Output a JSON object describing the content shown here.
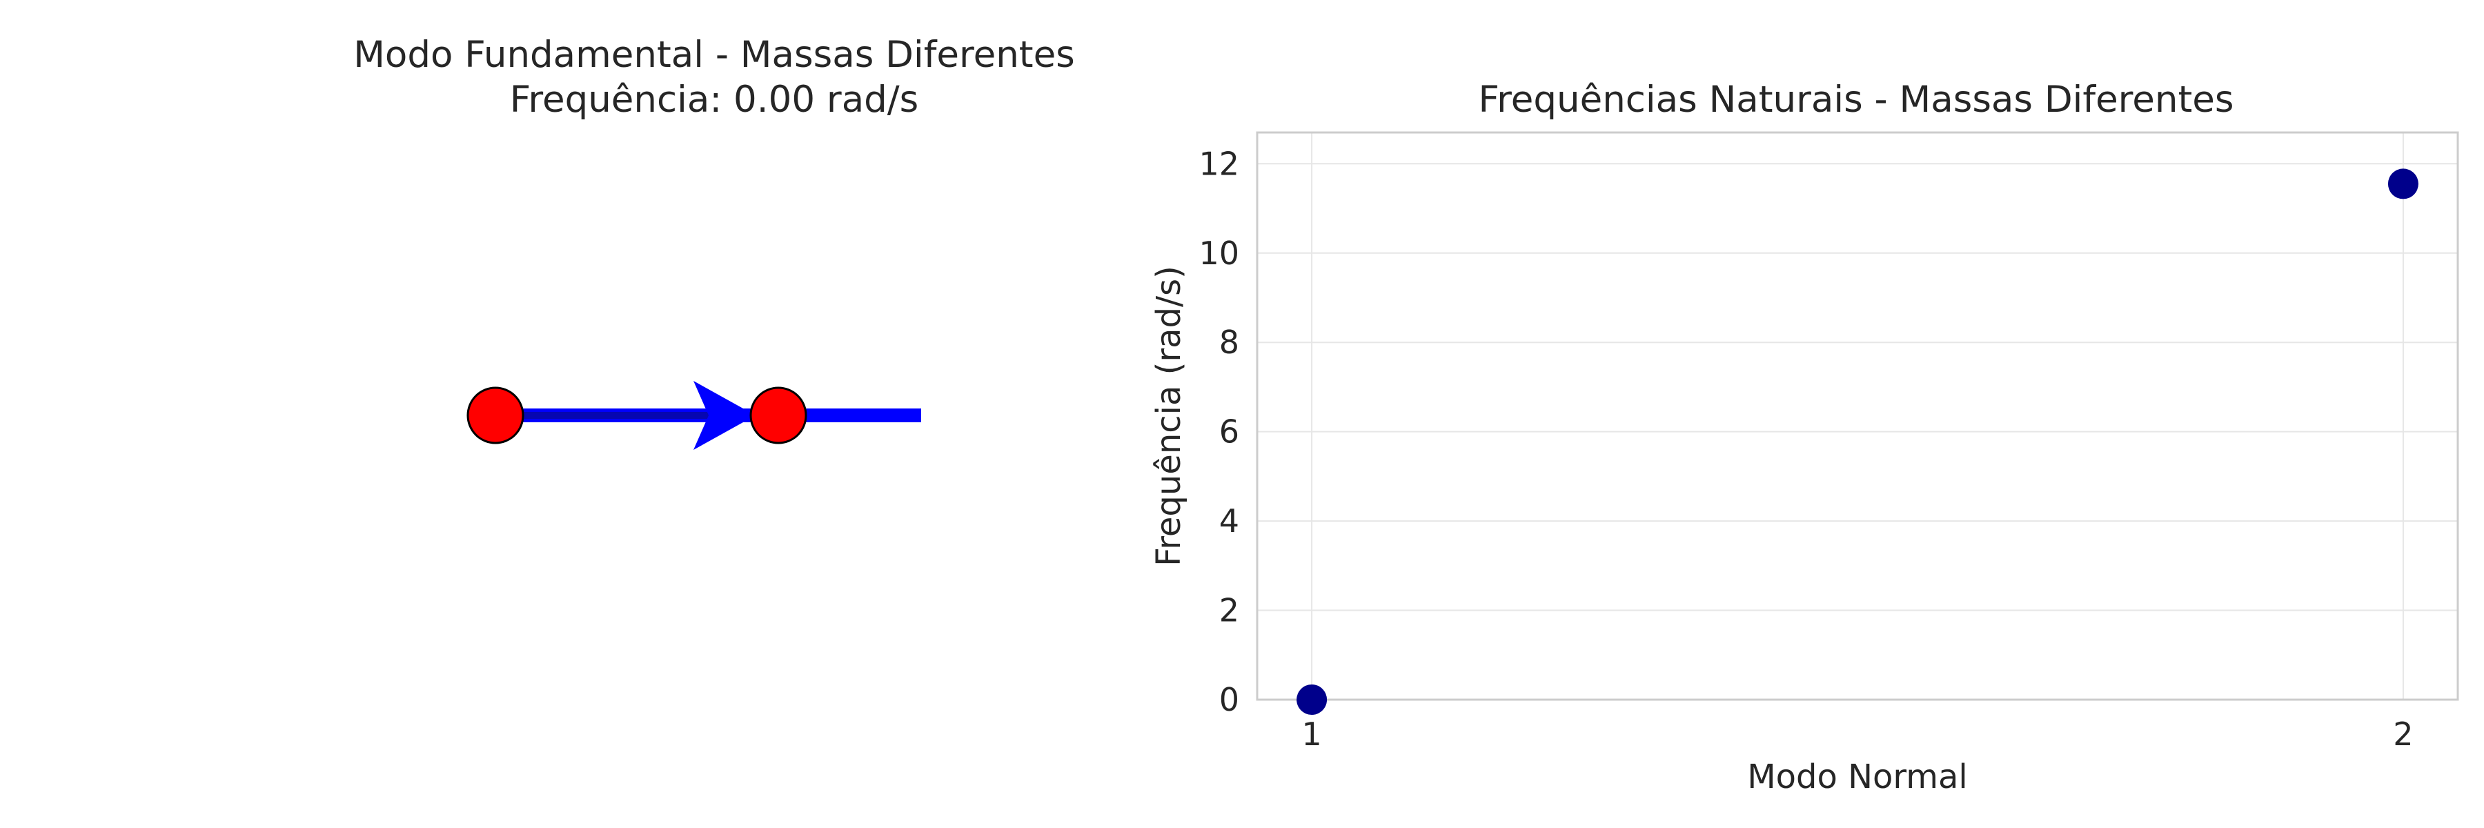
{
  "figure": {
    "left_panel": {
      "title_line1": "Modo Fundamental - Massas Diferentes",
      "title_line2": "Frequência: 0.00 rad/s",
      "mass_color": "#ff0000",
      "spring_color": "#0000ff",
      "arrow_color": "#0000ff"
    },
    "chart_data": {
      "type": "scatter",
      "title": "Frequências Naturais - Massas Diferentes",
      "xlabel": "Modo Normal",
      "ylabel": "Frequência (rad/s)",
      "x": [
        1,
        2
      ],
      "y": [
        0.0,
        11.55
      ],
      "xticks": [
        "1",
        "2"
      ],
      "yticks": [
        "0",
        "2",
        "4",
        "6",
        "8",
        "10",
        "12"
      ],
      "xlim": [
        0.95,
        2.05
      ],
      "ylim": [
        0,
        12.7
      ],
      "grid": true,
      "marker_color": "#00008b"
    }
  }
}
